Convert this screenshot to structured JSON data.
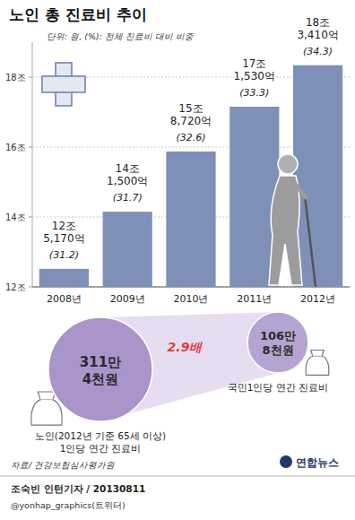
{
  "chart_data": [
    {
      "type": "bar",
      "title": "노인 총 진료비 추이",
      "subtitle": "단위: 원, (%): 전체 진료비 대비 비중",
      "categories": [
        "2008년",
        "2009년",
        "2010년",
        "2011년",
        "2012년"
      ],
      "values": [
        12.517,
        14.15,
        15.872,
        17.153,
        18.341
      ],
      "value_labels": [
        "12조\n5,170억",
        "14조\n1,500억",
        "15조\n8,720억",
        "17조\n1,530억",
        "18조\n3,410억"
      ],
      "shares": [
        31.2,
        31.7,
        32.6,
        33.3,
        34.3
      ],
      "share_labels": [
        "(31.2)",
        "(31.7)",
        "(32.6)",
        "(33.3)",
        "(34.3)"
      ],
      "color": "#7f90b8",
      "ylim": [
        12,
        19
      ],
      "yticks": [
        {
          "value": 12,
          "label": "12조"
        },
        {
          "value": 14,
          "label": "14조"
        },
        {
          "value": 16,
          "label": "16조"
        },
        {
          "value": 18,
          "label": "18조"
        }
      ],
      "grid": true,
      "data_labels": true
    },
    {
      "type": "bubble",
      "categories": [
        "노인(2012년 기준 65세 이상)\n1인당 연간 진료비",
        "국민1인당 연간 진료비"
      ],
      "values": [
        3114000,
        1068000
      ],
      "value_labels": [
        "311만\n4천원",
        "106만\n8천원"
      ],
      "ratio": 2.9,
      "ratio_label": "2.9배",
      "colors": [
        "#a995c9",
        "#b5a4d2"
      ],
      "data_labels": true
    }
  ],
  "footer": {
    "source": "자료/ 건강보험심사평가원",
    "credit": "조숙빈 인턴기자 / 20130811",
    "twitter": "@yonhap_graphics(트위터)",
    "logo": "연합뉴스"
  }
}
